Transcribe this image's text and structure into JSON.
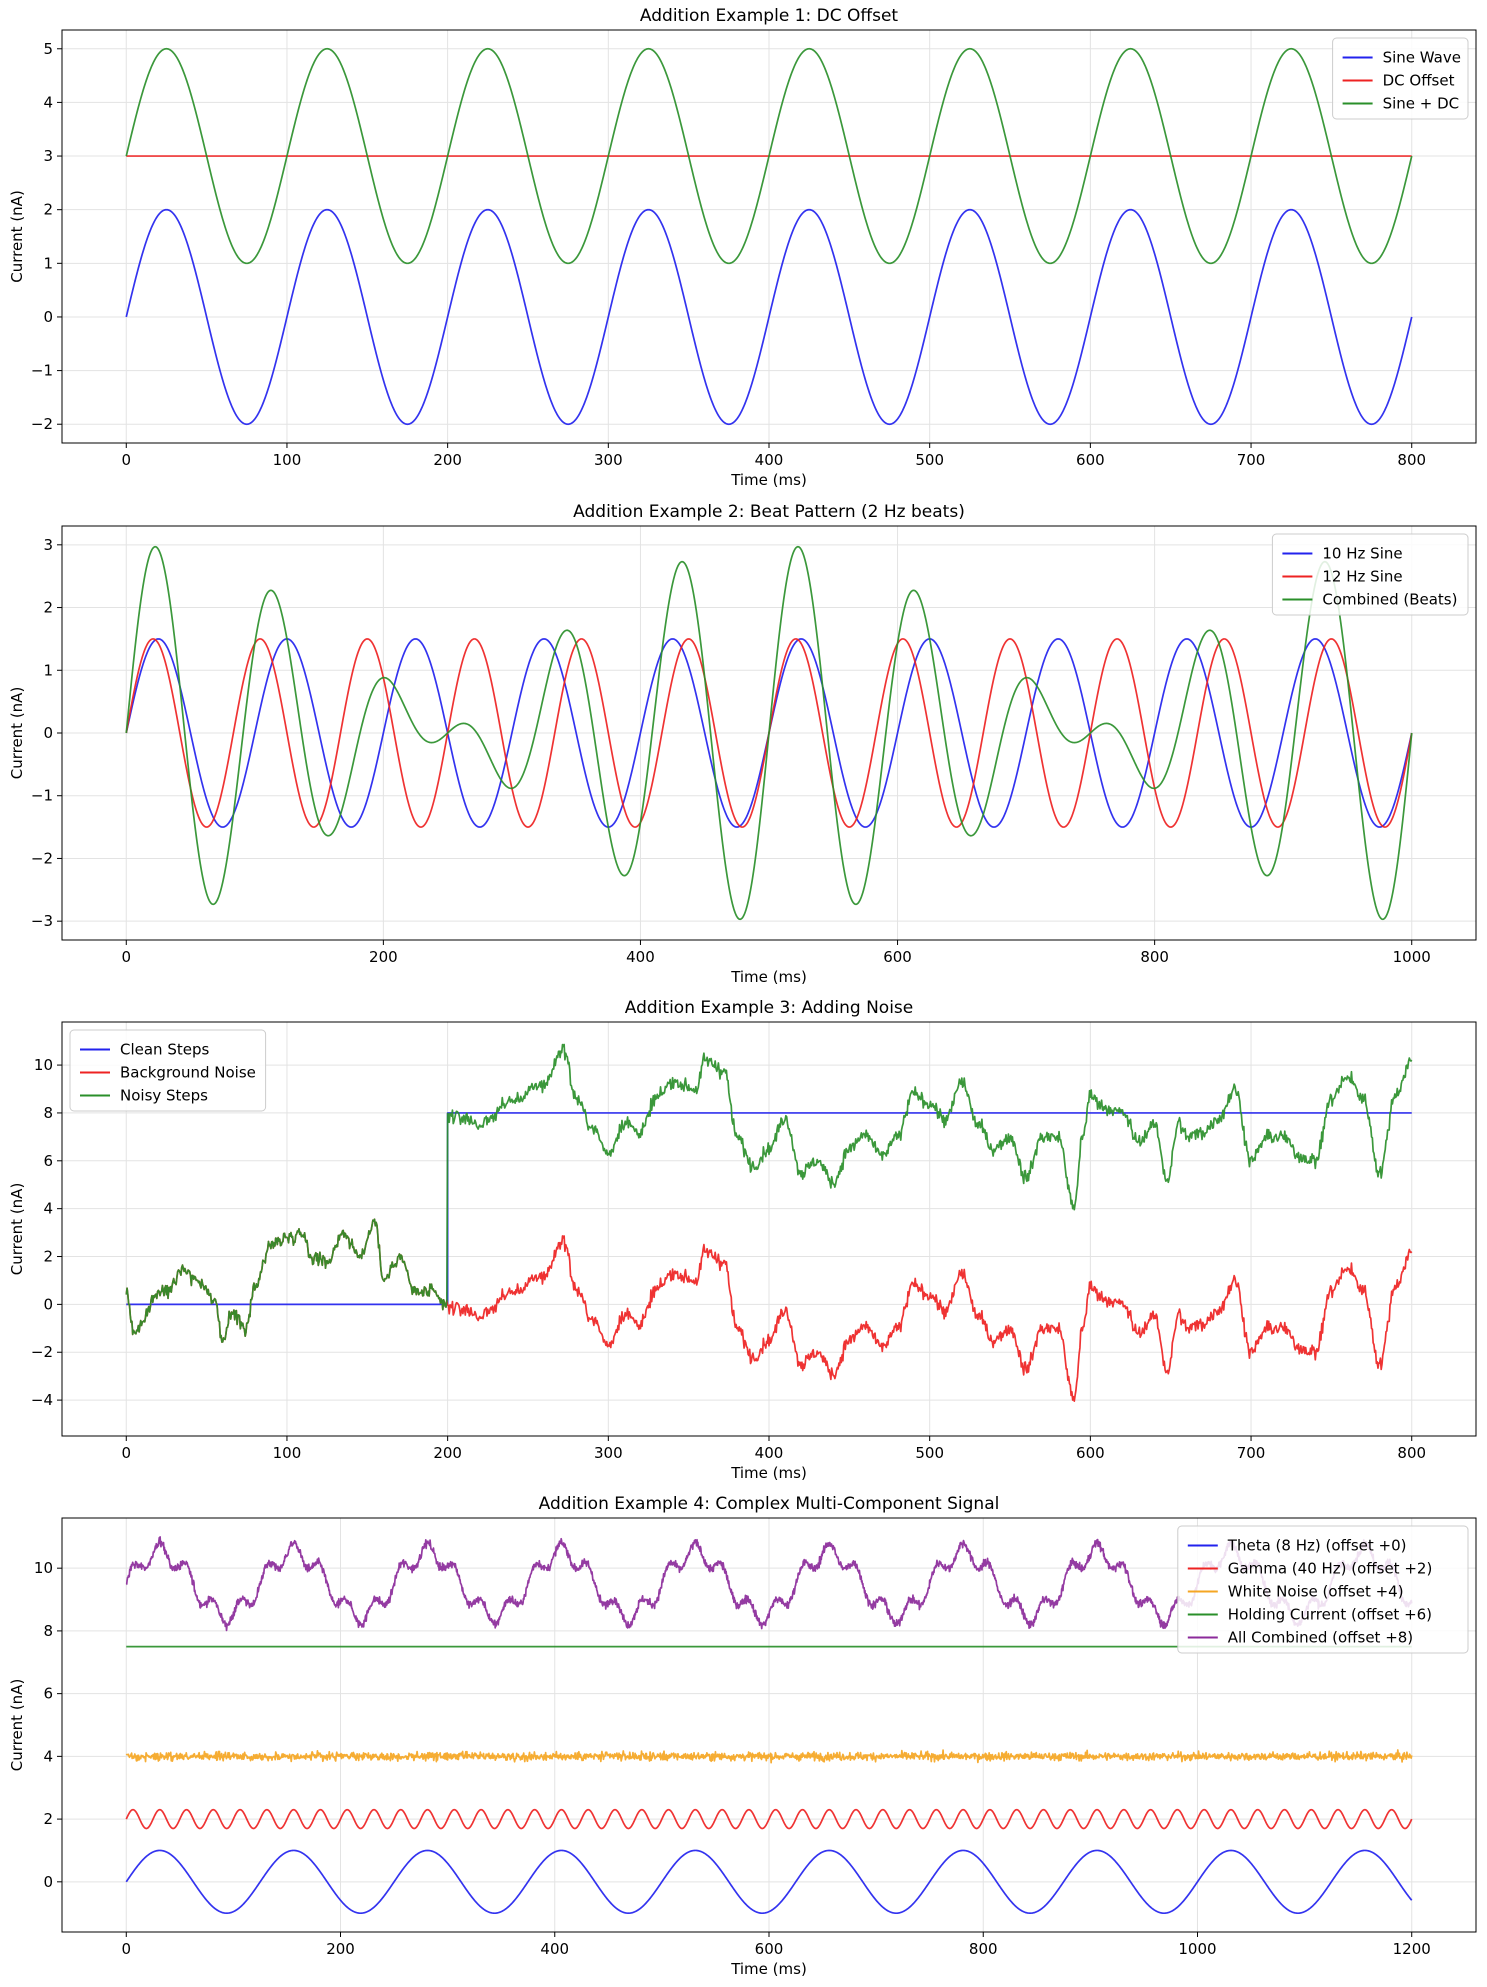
{
  "chart_data": [
    {
      "type": "line",
      "title": "Addition Example 1: DC Offset",
      "xlabel": "Time (ms)",
      "ylabel": "Current (nA)",
      "xlim": [
        -40,
        840
      ],
      "ylim": [
        -2.35,
        5.35
      ],
      "xticks": [
        0,
        100,
        200,
        300,
        400,
        500,
        600,
        700,
        800
      ],
      "yticks": [
        -2,
        -1,
        0,
        1,
        2,
        3,
        4,
        5
      ],
      "grid": true,
      "legend": "top-right",
      "series": [
        {
          "name": "Sine Wave",
          "color": "#2222ee",
          "fn": "sine",
          "amp": 2,
          "freq_hz": 10,
          "offset": 0,
          "x_range": [
            0,
            800
          ]
        },
        {
          "name": "DC Offset",
          "color": "#ee2222",
          "fn": "const",
          "value": 3,
          "x_range": [
            0,
            800
          ]
        },
        {
          "name": "Sine + DC",
          "color": "#2a8f2a",
          "fn": "sine",
          "amp": 2,
          "freq_hz": 10,
          "offset": 3,
          "x_range": [
            0,
            800
          ]
        }
      ]
    },
    {
      "type": "line",
      "title": "Addition Example 2: Beat Pattern (2 Hz beats)",
      "xlabel": "Time (ms)",
      "ylabel": "Current (nA)",
      "xlim": [
        -50,
        1050
      ],
      "ylim": [
        -3.3,
        3.3
      ],
      "xticks": [
        0,
        200,
        400,
        600,
        800,
        1000
      ],
      "yticks": [
        -3,
        -2,
        -1,
        0,
        1,
        2,
        3
      ],
      "grid": true,
      "legend": "top-right",
      "series": [
        {
          "name": "10 Hz Sine",
          "color": "#2222ee",
          "fn": "sine",
          "amp": 1.5,
          "freq_hz": 10,
          "offset": 0,
          "x_range": [
            0,
            1000
          ]
        },
        {
          "name": "12 Hz Sine",
          "color": "#ee2222",
          "fn": "sine",
          "amp": 1.5,
          "freq_hz": 12,
          "offset": 0,
          "x_range": [
            0,
            1000
          ]
        },
        {
          "name": "Combined (Beats)",
          "color": "#2a8f2a",
          "fn": "sum_sines",
          "amp": 1.5,
          "freqs_hz": [
            10,
            12
          ],
          "x_range": [
            0,
            1000
          ]
        }
      ]
    },
    {
      "type": "line",
      "title": "Addition Example 3: Adding Noise",
      "xlabel": "Time (ms)",
      "ylabel": "Current (nA)",
      "xlim": [
        -40,
        840
      ],
      "ylim": [
        -5.5,
        11.8
      ],
      "xticks": [
        0,
        100,
        200,
        300,
        400,
        500,
        600,
        700,
        800
      ],
      "yticks": [
        -4,
        -2,
        0,
        2,
        4,
        6,
        8,
        10
      ],
      "grid": true,
      "legend": "top-left",
      "noise_anchors_x": [
        0,
        5,
        10,
        18,
        25,
        35,
        45,
        55,
        60,
        65,
        75,
        80,
        90,
        100,
        110,
        115,
        125,
        135,
        145,
        155,
        160,
        170,
        180,
        190,
        200,
        210,
        220,
        240,
        260,
        272,
        280,
        290,
        300,
        310,
        320,
        330,
        340,
        355,
        360,
        372,
        380,
        390,
        400,
        410,
        420,
        430,
        440,
        450,
        460,
        470,
        480,
        490,
        500,
        510,
        520,
        530,
        540,
        550,
        560,
        570,
        580,
        590,
        595,
        600,
        610,
        620,
        630,
        640,
        648,
        655,
        660,
        670,
        680,
        690,
        700,
        710,
        720,
        730,
        740,
        750,
        760,
        770,
        780,
        790,
        800
      ],
      "noise_anchors_y": [
        0.5,
        -1.2,
        -0.8,
        0.4,
        0.6,
        1.5,
        1.0,
        0.2,
        -1.7,
        -0.3,
        -1.0,
        0.8,
        2.5,
        2.8,
        3.0,
        2.0,
        1.8,
        3.0,
        2.0,
        3.5,
        1.0,
        2.0,
        0.5,
        0.5,
        -0.1,
        -0.2,
        -0.5,
        0.5,
        1.2,
        2.7,
        0.6,
        -0.6,
        -1.7,
        -0.4,
        -0.8,
        0.6,
        1.3,
        1.0,
        2.2,
        1.8,
        -1.0,
        -2.2,
        -1.5,
        -0.2,
        -2.5,
        -2.0,
        -2.9,
        -1.5,
        -0.9,
        -1.8,
        -1.0,
        0.8,
        0.4,
        -0.3,
        1.3,
        -0.5,
        -1.5,
        -1.0,
        -2.7,
        -1.0,
        -1.0,
        -4.0,
        -1.0,
        0.7,
        0.2,
        0.0,
        -1.2,
        -0.5,
        -2.8,
        -0.4,
        -1.0,
        -0.8,
        -0.2,
        1.0,
        -2.0,
        -1.0,
        -1.0,
        -1.8,
        -2.0,
        0.6,
        1.5,
        0.6,
        -2.5,
        0.8,
        2.2
      ],
      "series": [
        {
          "name": "Clean Steps",
          "color": "#2222ee",
          "fn": "step",
          "levels": [
            0,
            8
          ],
          "step_at": 200,
          "x_range": [
            0,
            800
          ]
        },
        {
          "name": "Background Noise",
          "color": "#ee2222",
          "fn": "noise",
          "x_range": [
            0,
            800
          ]
        },
        {
          "name": "Noisy Steps",
          "color": "#2a8f2a",
          "fn": "noisy_step",
          "x_range": [
            0,
            800
          ]
        }
      ]
    },
    {
      "type": "line",
      "title": "Addition Example 4: Complex Multi-Component Signal",
      "xlabel": "Time (ms)",
      "ylabel": "Current (nA)",
      "xlim": [
        -60,
        1260
      ],
      "ylim": [
        -1.6,
        11.6
      ],
      "xticks": [
        0,
        200,
        400,
        600,
        800,
        1000,
        1200
      ],
      "yticks": [
        0,
        2,
        4,
        6,
        8,
        10
      ],
      "grid": true,
      "legend": "top-right",
      "series": [
        {
          "name": "Theta (8 Hz) (offset +0)",
          "color": "#2222ee",
          "fn": "sine",
          "amp": 1,
          "freq_hz": 8,
          "offset": 0,
          "x_range": [
            0,
            1200
          ]
        },
        {
          "name": "Gamma (40 Hz) (offset +2)",
          "color": "#ee2222",
          "fn": "sine",
          "amp": 0.3,
          "freq_hz": 40,
          "offset": 2,
          "x_range": [
            0,
            1200
          ]
        },
        {
          "name": "White Noise (offset +4)",
          "color": "#f5a623",
          "fn": "white",
          "level": 4,
          "spread": 0.09,
          "x_range": [
            0,
            1200
          ]
        },
        {
          "name": "Holding Current (offset +6)",
          "color": "#2a8f2a",
          "fn": "const",
          "value": 7.5,
          "x_range": [
            0,
            1200
          ]
        },
        {
          "name": "All Combined (offset +8)",
          "color": "#8b2a9a",
          "fn": "combined",
          "x_range": [
            0,
            1200
          ]
        }
      ]
    }
  ]
}
